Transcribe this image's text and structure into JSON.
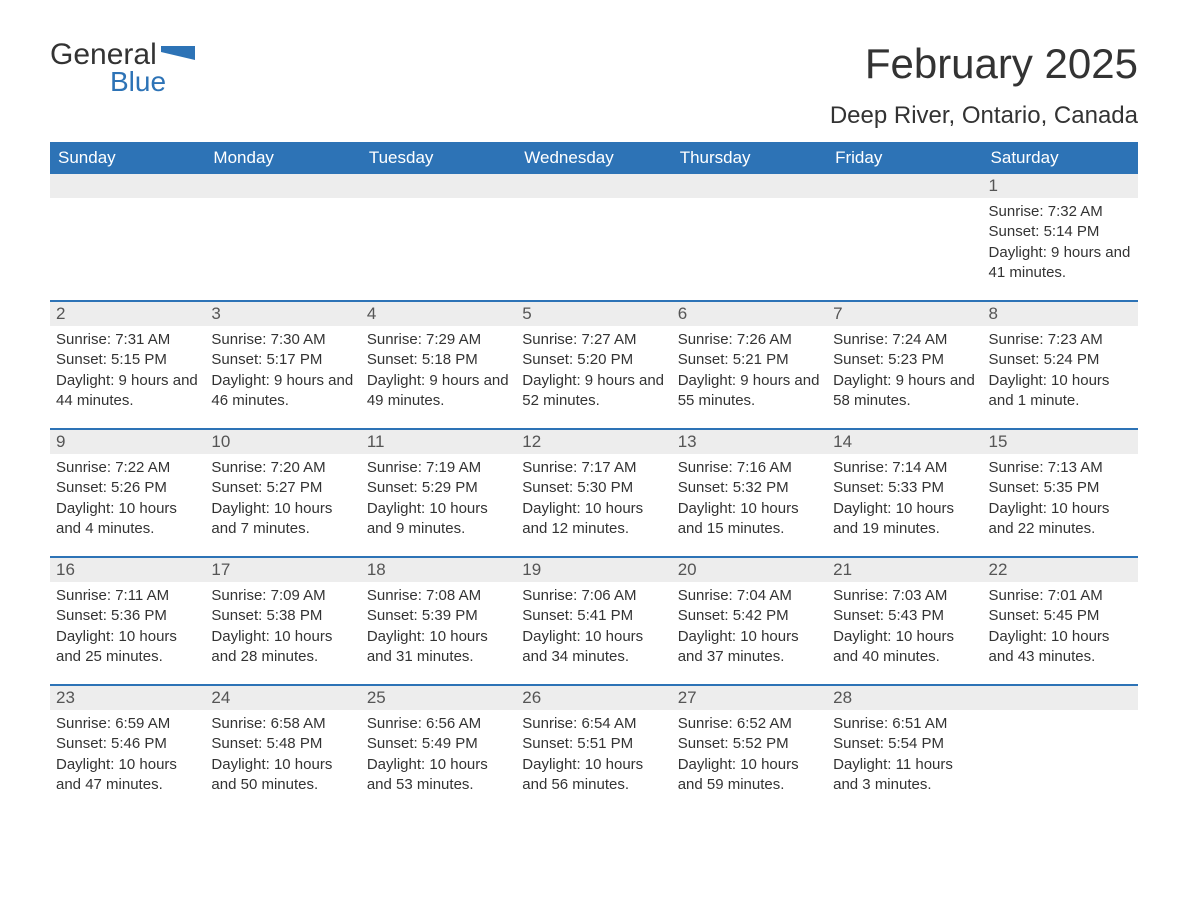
{
  "brand": {
    "word1": "General",
    "word2": "Blue",
    "logo_color": "#2d73b6"
  },
  "title": "February 2025",
  "subtitle": "Deep River, Ontario, Canada",
  "header_bg": "#2d73b6",
  "header_text": "#ffffff",
  "daybar_bg": "#ededed",
  "border_color": "#2d73b6",
  "weekdays": [
    "Sunday",
    "Monday",
    "Tuesday",
    "Wednesday",
    "Thursday",
    "Friday",
    "Saturday"
  ],
  "weeks": [
    [
      {
        "n": "",
        "sr": "",
        "ss": "",
        "dl": ""
      },
      {
        "n": "",
        "sr": "",
        "ss": "",
        "dl": ""
      },
      {
        "n": "",
        "sr": "",
        "ss": "",
        "dl": ""
      },
      {
        "n": "",
        "sr": "",
        "ss": "",
        "dl": ""
      },
      {
        "n": "",
        "sr": "",
        "ss": "",
        "dl": ""
      },
      {
        "n": "",
        "sr": "",
        "ss": "",
        "dl": ""
      },
      {
        "n": "1",
        "sr": "Sunrise: 7:32 AM",
        "ss": "Sunset: 5:14 PM",
        "dl": "Daylight: 9 hours and 41 minutes."
      }
    ],
    [
      {
        "n": "2",
        "sr": "Sunrise: 7:31 AM",
        "ss": "Sunset: 5:15 PM",
        "dl": "Daylight: 9 hours and 44 minutes."
      },
      {
        "n": "3",
        "sr": "Sunrise: 7:30 AM",
        "ss": "Sunset: 5:17 PM",
        "dl": "Daylight: 9 hours and 46 minutes."
      },
      {
        "n": "4",
        "sr": "Sunrise: 7:29 AM",
        "ss": "Sunset: 5:18 PM",
        "dl": "Daylight: 9 hours and 49 minutes."
      },
      {
        "n": "5",
        "sr": "Sunrise: 7:27 AM",
        "ss": "Sunset: 5:20 PM",
        "dl": "Daylight: 9 hours and 52 minutes."
      },
      {
        "n": "6",
        "sr": "Sunrise: 7:26 AM",
        "ss": "Sunset: 5:21 PM",
        "dl": "Daylight: 9 hours and 55 minutes."
      },
      {
        "n": "7",
        "sr": "Sunrise: 7:24 AM",
        "ss": "Sunset: 5:23 PM",
        "dl": "Daylight: 9 hours and 58 minutes."
      },
      {
        "n": "8",
        "sr": "Sunrise: 7:23 AM",
        "ss": "Sunset: 5:24 PM",
        "dl": "Daylight: 10 hours and 1 minute."
      }
    ],
    [
      {
        "n": "9",
        "sr": "Sunrise: 7:22 AM",
        "ss": "Sunset: 5:26 PM",
        "dl": "Daylight: 10 hours and 4 minutes."
      },
      {
        "n": "10",
        "sr": "Sunrise: 7:20 AM",
        "ss": "Sunset: 5:27 PM",
        "dl": "Daylight: 10 hours and 7 minutes."
      },
      {
        "n": "11",
        "sr": "Sunrise: 7:19 AM",
        "ss": "Sunset: 5:29 PM",
        "dl": "Daylight: 10 hours and 9 minutes."
      },
      {
        "n": "12",
        "sr": "Sunrise: 7:17 AM",
        "ss": "Sunset: 5:30 PM",
        "dl": "Daylight: 10 hours and 12 minutes."
      },
      {
        "n": "13",
        "sr": "Sunrise: 7:16 AM",
        "ss": "Sunset: 5:32 PM",
        "dl": "Daylight: 10 hours and 15 minutes."
      },
      {
        "n": "14",
        "sr": "Sunrise: 7:14 AM",
        "ss": "Sunset: 5:33 PM",
        "dl": "Daylight: 10 hours and 19 minutes."
      },
      {
        "n": "15",
        "sr": "Sunrise: 7:13 AM",
        "ss": "Sunset: 5:35 PM",
        "dl": "Daylight: 10 hours and 22 minutes."
      }
    ],
    [
      {
        "n": "16",
        "sr": "Sunrise: 7:11 AM",
        "ss": "Sunset: 5:36 PM",
        "dl": "Daylight: 10 hours and 25 minutes."
      },
      {
        "n": "17",
        "sr": "Sunrise: 7:09 AM",
        "ss": "Sunset: 5:38 PM",
        "dl": "Daylight: 10 hours and 28 minutes."
      },
      {
        "n": "18",
        "sr": "Sunrise: 7:08 AM",
        "ss": "Sunset: 5:39 PM",
        "dl": "Daylight: 10 hours and 31 minutes."
      },
      {
        "n": "19",
        "sr": "Sunrise: 7:06 AM",
        "ss": "Sunset: 5:41 PM",
        "dl": "Daylight: 10 hours and 34 minutes."
      },
      {
        "n": "20",
        "sr": "Sunrise: 7:04 AM",
        "ss": "Sunset: 5:42 PM",
        "dl": "Daylight: 10 hours and 37 minutes."
      },
      {
        "n": "21",
        "sr": "Sunrise: 7:03 AM",
        "ss": "Sunset: 5:43 PM",
        "dl": "Daylight: 10 hours and 40 minutes."
      },
      {
        "n": "22",
        "sr": "Sunrise: 7:01 AM",
        "ss": "Sunset: 5:45 PM",
        "dl": "Daylight: 10 hours and 43 minutes."
      }
    ],
    [
      {
        "n": "23",
        "sr": "Sunrise: 6:59 AM",
        "ss": "Sunset: 5:46 PM",
        "dl": "Daylight: 10 hours and 47 minutes."
      },
      {
        "n": "24",
        "sr": "Sunrise: 6:58 AM",
        "ss": "Sunset: 5:48 PM",
        "dl": "Daylight: 10 hours and 50 minutes."
      },
      {
        "n": "25",
        "sr": "Sunrise: 6:56 AM",
        "ss": "Sunset: 5:49 PM",
        "dl": "Daylight: 10 hours and 53 minutes."
      },
      {
        "n": "26",
        "sr": "Sunrise: 6:54 AM",
        "ss": "Sunset: 5:51 PM",
        "dl": "Daylight: 10 hours and 56 minutes."
      },
      {
        "n": "27",
        "sr": "Sunrise: 6:52 AM",
        "ss": "Sunset: 5:52 PM",
        "dl": "Daylight: 10 hours and 59 minutes."
      },
      {
        "n": "28",
        "sr": "Sunrise: 6:51 AM",
        "ss": "Sunset: 5:54 PM",
        "dl": "Daylight: 11 hours and 3 minutes."
      },
      {
        "n": "",
        "sr": "",
        "ss": "",
        "dl": ""
      }
    ]
  ]
}
